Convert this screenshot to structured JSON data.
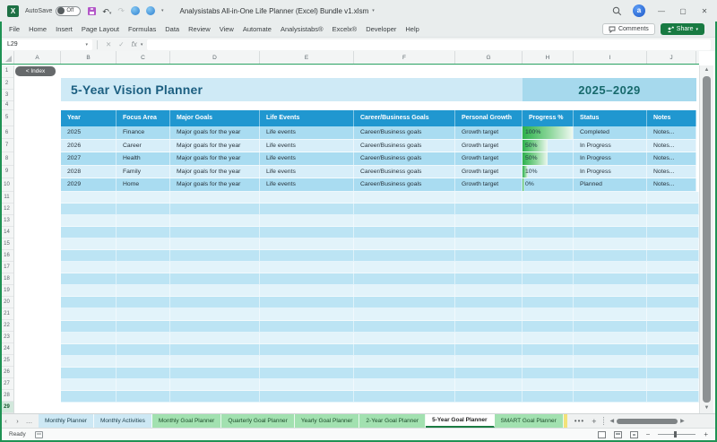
{
  "colors": {
    "accent_green": "#1f9254",
    "table_header_blue": "#2097d0",
    "row_medium": "#a9dcf1",
    "row_light": "#d7eef9",
    "band_medium": "#bce4f4",
    "band_light": "#e2f3fa",
    "title_band": "#cfeaf6",
    "year_box": "#a6d9ed",
    "progress_bar_green": "#2cb14c",
    "share_button_green": "#187a42"
  },
  "titlebar": {
    "autosave_label": "AutoSave",
    "autosave_state": "Off",
    "doc_title": "Analysistabs All-in-One Life Planner (Excel) Bundle v1.xlsm",
    "avatar_initial": "a"
  },
  "menubar": {
    "items": [
      "File",
      "Home",
      "Insert",
      "Page Layout",
      "Formulas",
      "Data",
      "Review",
      "View",
      "Automate",
      "Analysistabs®",
      "Excelx®",
      "Developer",
      "Help"
    ],
    "comments_label": "Comments",
    "share_label": "Share"
  },
  "formula_bar": {
    "name_box": "L29",
    "fx_label": "fx",
    "value": ""
  },
  "grid": {
    "columns": [
      "A",
      "B",
      "C",
      "D",
      "E",
      "F",
      "G",
      "H",
      "I",
      "J"
    ],
    "row_count": 29,
    "selected_row": 29
  },
  "sheet": {
    "index_button_label": "< Index",
    "title": "5-Year Vision Planner",
    "year_range": "2025–2029",
    "table": {
      "headers": [
        "Year",
        "Focus Area",
        "Major Goals",
        "Life Events",
        "Career/Business Goals",
        "Personal Growth",
        "Progress %",
        "Status",
        "Notes"
      ],
      "rows": [
        {
          "year": "2025",
          "focus_area": "Finance",
          "major_goals": "Major goals for the year",
          "life_events": "Life events",
          "career_goals": "Career/Business goals",
          "personal_growth": "Growth target",
          "progress": "100%",
          "progress_pct": 100,
          "status": "Completed",
          "notes": "Notes..."
        },
        {
          "year": "2026",
          "focus_area": "Career",
          "major_goals": "Major goals for the year",
          "life_events": "Life events",
          "career_goals": "Career/Business goals",
          "personal_growth": "Growth target",
          "progress": "50%",
          "progress_pct": 50,
          "status": "In Progress",
          "notes": "Notes..."
        },
        {
          "year": "2027",
          "focus_area": "Health",
          "major_goals": "Major goals for the year",
          "life_events": "Life events",
          "career_goals": "Career/Business goals",
          "personal_growth": "Growth target",
          "progress": "50%",
          "progress_pct": 50,
          "status": "In Progress",
          "notes": "Notes..."
        },
        {
          "year": "2028",
          "focus_area": "Family",
          "major_goals": "Major goals for the year",
          "life_events": "Life events",
          "career_goals": "Career/Business goals",
          "personal_growth": "Growth target",
          "progress": "10%",
          "progress_pct": 10,
          "status": "In Progress",
          "notes": "Notes..."
        },
        {
          "year": "2029",
          "focus_area": "Home",
          "major_goals": "Major goals for the year",
          "life_events": "Life events",
          "career_goals": "Career/Business goals",
          "personal_growth": "Growth target",
          "progress": "0%",
          "progress_pct": 0,
          "status": "Planned",
          "notes": "Notes..."
        }
      ]
    }
  },
  "sheet_tabs": {
    "tabs": [
      {
        "label": "Monthly Planner",
        "color": "blue",
        "active": false
      },
      {
        "label": "Monthly Activities",
        "color": "blue",
        "active": false
      },
      {
        "label": "Monthly Goal Planner",
        "color": "green",
        "active": false
      },
      {
        "label": "Quarterly Goal Planner",
        "color": "green",
        "active": false
      },
      {
        "label": "Yearly Goal Planner",
        "color": "green",
        "active": false
      },
      {
        "label": "2-Year Goal Planner",
        "color": "green",
        "active": false
      },
      {
        "label": "5-Year Goal Planner",
        "color": "white",
        "active": true
      },
      {
        "label": "SMART Goal Planner",
        "color": "green",
        "active": false
      }
    ]
  },
  "status_bar": {
    "ready_label": "Ready"
  }
}
